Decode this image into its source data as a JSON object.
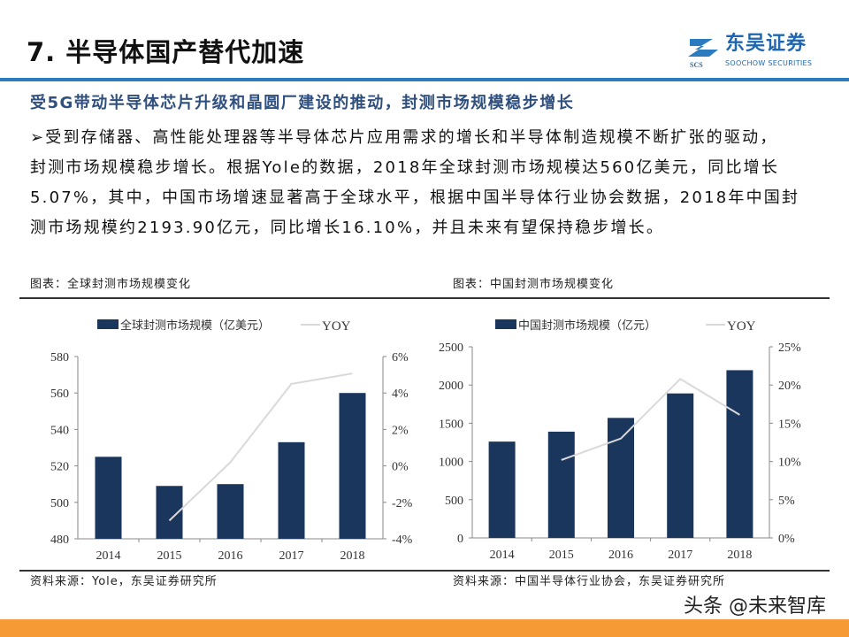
{
  "header": {
    "title": "7. 半导体国产替代加速",
    "logo": {
      "cn": "东吴证券",
      "en": "SOOCHOW SECURITIES",
      "mark": "SCS"
    },
    "accent_color": "#2a7bbf"
  },
  "content": {
    "subheading": "受5G带动半导体芯片升级和晶圆厂建设的推动，封测市场规模稳步增长",
    "paragraph_lines": [
      "➢受到存储器、高性能处理器等半导体芯片应用需求的增长和半导体制造规模不断扩张的驱动，",
      "封测市场规模稳步增长。根据Yole的数据，2018年全球封测市场规模达560亿美元，同比增长",
      "5.07%，其中，中国市场增速显著高于全球水平，根据中国半导体行业协会数据，2018年中国封",
      "测市场规模约2193.90亿元，同比增长16.10%，并且未来有望保持稳步增长。"
    ]
  },
  "figures": [
    {
      "caption": "图表：全球封测市场规模变化",
      "source": "资料来源：Yole，东吴证券研究所"
    },
    {
      "caption": "图表：中国封测市场规模变化",
      "source": "资料来源：中国半导体行业协会，东吴证券研究所"
    }
  ],
  "chart_data": [
    {
      "type": "bar",
      "categories": [
        "2014",
        "2015",
        "2016",
        "2017",
        "2018"
      ],
      "series": [
        {
          "name": "全球封测市场规模（亿美元）",
          "type": "bar",
          "axis": "left",
          "values": [
            525,
            509,
            510,
            533,
            560
          ],
          "color": "#1b365d"
        },
        {
          "name": "YOY",
          "type": "line",
          "axis": "right",
          "values": [
            null,
            -3.0,
            0.2,
            4.5,
            5.07
          ],
          "color": "#d9d9d9"
        }
      ],
      "ylim": [
        480,
        580
      ],
      "yticks": [
        "480",
        "500",
        "520",
        "540",
        "560",
        "580"
      ],
      "y2lim": [
        -4,
        6
      ],
      "y2ticks": [
        "-4%",
        "-2%",
        "0%",
        "2%",
        "4%",
        "6%"
      ],
      "legend": "top",
      "grid": false
    },
    {
      "type": "bar",
      "categories": [
        "2014",
        "2015",
        "2016",
        "2017",
        "2018"
      ],
      "series": [
        {
          "name": "中国封测市场规模（亿元）",
          "type": "bar",
          "axis": "left",
          "values": [
            1260,
            1390,
            1570,
            1890,
            2193.9
          ],
          "color": "#1b365d"
        },
        {
          "name": "YOY",
          "type": "line",
          "axis": "right",
          "values": [
            null,
            10.2,
            13.0,
            20.8,
            16.1
          ],
          "color": "#d9d9d9"
        }
      ],
      "ylim": [
        0,
        2500
      ],
      "yticks": [
        "0",
        "500",
        "1000",
        "1500",
        "2000",
        "2500"
      ],
      "y2lim": [
        0,
        25
      ],
      "y2ticks": [
        "0%",
        "5%",
        "10%",
        "15%",
        "20%",
        "25%"
      ],
      "legend": "top",
      "grid": false
    }
  ],
  "watermark": "头条 @未来智库",
  "footer_color": "#f59a34"
}
